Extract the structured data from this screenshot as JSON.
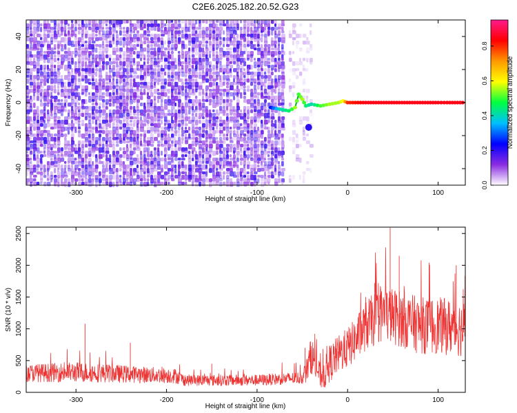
{
  "figure": {
    "title": "C2E6.2025.182.20.52.G23"
  },
  "colors": {
    "background": "#ffffff",
    "axis": "#000000",
    "snr_line": "#ee3333",
    "colormap": [
      "#ffffff",
      "#8a2be2",
      "#0000ff",
      "#00c0ff",
      "#00ff40",
      "#ffff00",
      "#ff9900",
      "#ff0000",
      "#ff1a8c"
    ]
  },
  "chart_data": [
    {
      "type": "heatmap",
      "xlabel": "Height of straight line (km)",
      "ylabel": "Frequency (Hz)",
      "xlim": [
        -355,
        130
      ],
      "ylim": [
        -50,
        50
      ],
      "xticks": [
        -300,
        -200,
        -100,
        0,
        100
      ],
      "yticks": [
        -40,
        -20,
        0,
        20,
        40
      ],
      "colorbar": {
        "label": "Normalized spectral amplitude",
        "range": [
          0,
          0.95
        ],
        "ticks": [
          0.0,
          0.2,
          0.4,
          0.6,
          0.8
        ]
      },
      "regions": [
        {
          "x": [
            -355,
            -70
          ],
          "frequency": [
            -50,
            50
          ],
          "amplitude": [
            0.05,
            0.2
          ]
        },
        {
          "x": [
            -65,
            -40
          ],
          "frequency": [
            -50,
            50
          ],
          "amplitude": [
            0.02,
            0.1
          ]
        }
      ],
      "ridge": {
        "x": [
          -85,
          -75,
          -65,
          -58,
          -54,
          -50,
          -46,
          -40,
          -30,
          -20,
          -10,
          -5,
          0,
          20,
          40,
          60,
          80,
          100,
          110,
          130
        ],
        "frequency": [
          -3,
          -4,
          -5,
          -3,
          5,
          2,
          -2,
          -1,
          -2,
          -1,
          0,
          1,
          0,
          0,
          0,
          0,
          0,
          0,
          0,
          0
        ],
        "amplitude": [
          0.25,
          0.4,
          0.45,
          0.55,
          0.5,
          0.55,
          0.45,
          0.4,
          0.5,
          0.55,
          0.55,
          0.6,
          0.8,
          0.85,
          0.85,
          0.85,
          0.85,
          0.85,
          0.85,
          0.85
        ]
      },
      "secondary_blob": {
        "x": -43,
        "frequency": -15,
        "amplitude": 0.2
      }
    },
    {
      "type": "line",
      "xlabel": "Height of straight line (km)",
      "ylabel": "SNR (10 * v/v)",
      "xlim": [
        -355,
        130
      ],
      "ylim": [
        0,
        2600
      ],
      "xticks": [
        -300,
        -200,
        -100,
        0,
        100
      ],
      "yticks": [
        0,
        500,
        1000,
        1500,
        2000,
        2500
      ],
      "series": [
        {
          "envelope_x": [
            -355,
            -300,
            -250,
            -190,
            -180,
            -100,
            -50,
            -45,
            -40,
            -30,
            -25,
            -20,
            -10,
            0,
            10,
            20,
            40,
            60,
            80,
            100,
            130
          ],
          "envelope_mean": [
            300,
            320,
            290,
            260,
            190,
            190,
            230,
            350,
            600,
            250,
            300,
            450,
            600,
            700,
            850,
            1050,
            1250,
            1150,
            1050,
            1050,
            1000
          ],
          "envelope_spread": [
            140,
            160,
            140,
            120,
            90,
            90,
            100,
            200,
            300,
            200,
            250,
            300,
            300,
            320,
            350,
            400,
            450,
            450,
            450,
            450,
            450
          ],
          "peaks_x": [
            -290,
            -240,
            -150,
            -47,
            -41,
            20,
            30,
            47,
            57,
            90,
            120
          ],
          "peaks_y": [
            1080,
            780,
            450,
            700,
            800,
            1500,
            1720,
            2590,
            2150,
            2040,
            2000
          ]
        }
      ]
    }
  ]
}
